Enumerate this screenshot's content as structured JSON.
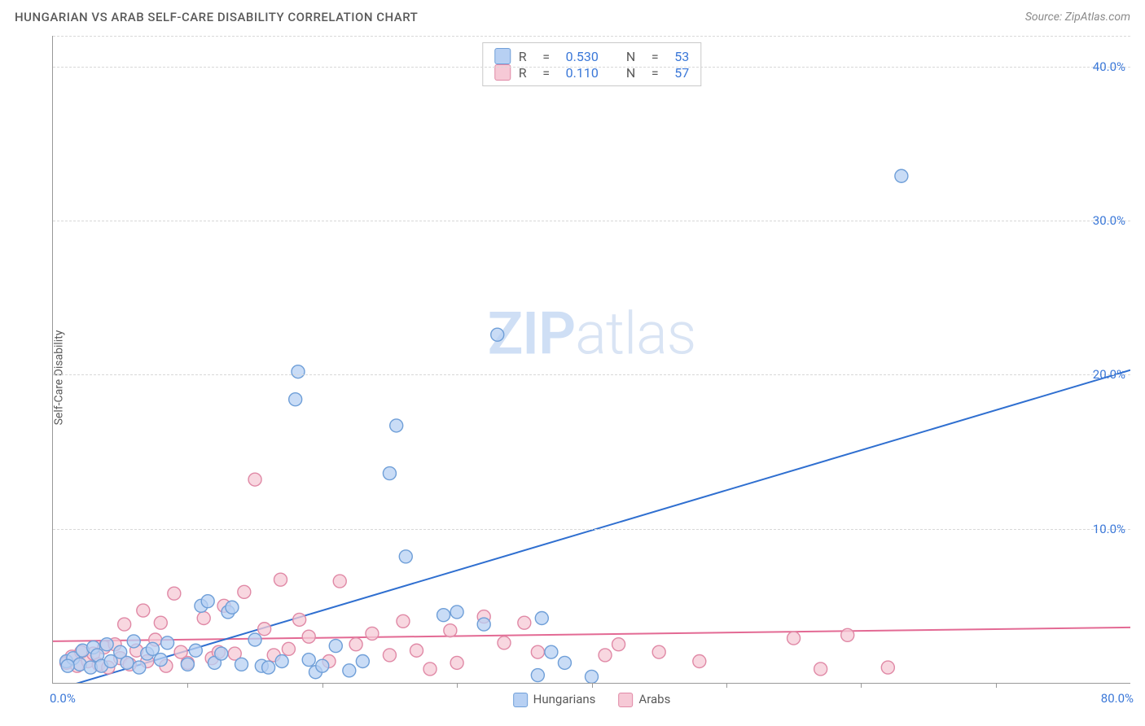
{
  "header": {
    "title": "HUNGARIAN VS ARAB SELF-CARE DISABILITY CORRELATION CHART",
    "source": "Source: ZipAtlas.com"
  },
  "chart": {
    "type": "scatter",
    "ylabel": "Self-Care Disability",
    "xlim": [
      0,
      80
    ],
    "ylim": [
      0,
      42
    ],
    "xtick_step": 10,
    "ytick_step": 10,
    "ytick_labels": [
      "10.0%",
      "20.0%",
      "30.0%",
      "40.0%"
    ],
    "xlabel_min": "0.0%",
    "xlabel_max": "80.0%",
    "grid_color": "#d8d8d8",
    "axis_color": "#999999",
    "background_color": "#ffffff",
    "marker_radius": 8,
    "marker_stroke_width": 1.4,
    "line_width": 2,
    "series": {
      "hungarians": {
        "label": "Hungarians",
        "fill": "#b7d0f3",
        "stroke": "#6f9fd8",
        "line_color": "#2f6fd0",
        "regression": {
          "x1": 0,
          "y1": -0.5,
          "x2": 80,
          "y2": 20.3
        },
        "points": [
          [
            1,
            1.4
          ],
          [
            1.5,
            1.6
          ],
          [
            2,
            1.2
          ],
          [
            2.2,
            2.1
          ],
          [
            2.8,
            1.0
          ],
          [
            3,
            2.3
          ],
          [
            3.3,
            1.8
          ],
          [
            3.6,
            1.1
          ],
          [
            4,
            2.5
          ],
          [
            4.3,
            1.4
          ],
          [
            5,
            2.0
          ],
          [
            5.5,
            1.3
          ],
          [
            6,
            2.7
          ],
          [
            6.4,
            1.0
          ],
          [
            7,
            1.9
          ],
          [
            7.4,
            2.2
          ],
          [
            8,
            1.5
          ],
          [
            8.5,
            2.6
          ],
          [
            10,
            1.2
          ],
          [
            10.6,
            2.1
          ],
          [
            11,
            5.0
          ],
          [
            11.5,
            5.3
          ],
          [
            12,
            1.3
          ],
          [
            12.5,
            1.9
          ],
          [
            13,
            4.6
          ],
          [
            13.3,
            4.9
          ],
          [
            14,
            1.2
          ],
          [
            15,
            2.8
          ],
          [
            15.5,
            1.1
          ],
          [
            16,
            1.0
          ],
          [
            17,
            1.4
          ],
          [
            18,
            18.4
          ],
          [
            18.2,
            20.2
          ],
          [
            19,
            1.5
          ],
          [
            19.5,
            0.7
          ],
          [
            20,
            1.1
          ],
          [
            21,
            2.4
          ],
          [
            22,
            0.8
          ],
          [
            23,
            1.4
          ],
          [
            25,
            13.6
          ],
          [
            25.5,
            16.7
          ],
          [
            26.2,
            8.2
          ],
          [
            29,
            4.4
          ],
          [
            30,
            4.6
          ],
          [
            32,
            3.8
          ],
          [
            33,
            22.6
          ],
          [
            36,
            0.5
          ],
          [
            36.3,
            4.2
          ],
          [
            37,
            2.0
          ],
          [
            38,
            1.3
          ],
          [
            40,
            0.4
          ],
          [
            63,
            32.9
          ],
          [
            1.1,
            1.1
          ]
        ]
      },
      "arabs": {
        "label": "Arabs",
        "fill": "#f6c9d6",
        "stroke": "#e089a6",
        "line_color": "#e36a94",
        "regression": {
          "x1": 0,
          "y1": 2.7,
          "x2": 80,
          "y2": 3.6
        },
        "points": [
          [
            1,
            1.3
          ],
          [
            1.4,
            1.7
          ],
          [
            1.8,
            1.1
          ],
          [
            2.1,
            2.0
          ],
          [
            2.6,
            1.4
          ],
          [
            3,
            1.9
          ],
          [
            3.4,
            1.2
          ],
          [
            3.8,
            2.3
          ],
          [
            4.1,
            1.0
          ],
          [
            4.6,
            2.5
          ],
          [
            5,
            1.6
          ],
          [
            5.3,
            3.8
          ],
          [
            5.7,
            1.2
          ],
          [
            6.2,
            2.1
          ],
          [
            6.7,
            4.7
          ],
          [
            7,
            1.4
          ],
          [
            7.6,
            2.8
          ],
          [
            8,
            3.9
          ],
          [
            8.4,
            1.1
          ],
          [
            9,
            5.8
          ],
          [
            9.5,
            2.0
          ],
          [
            10,
            1.3
          ],
          [
            11.2,
            4.2
          ],
          [
            11.8,
            1.6
          ],
          [
            12.3,
            2.0
          ],
          [
            12.7,
            5.0
          ],
          [
            13.5,
            1.9
          ],
          [
            14.2,
            5.9
          ],
          [
            15,
            13.2
          ],
          [
            15.7,
            3.5
          ],
          [
            16.4,
            1.8
          ],
          [
            16.9,
            6.7
          ],
          [
            17.5,
            2.2
          ],
          [
            18.3,
            4.1
          ],
          [
            19,
            3.0
          ],
          [
            20.5,
            1.4
          ],
          [
            21.3,
            6.6
          ],
          [
            22.5,
            2.5
          ],
          [
            23.7,
            3.2
          ],
          [
            25,
            1.8
          ],
          [
            26,
            4.0
          ],
          [
            27,
            2.1
          ],
          [
            28,
            0.9
          ],
          [
            29.5,
            3.4
          ],
          [
            30,
            1.3
          ],
          [
            32,
            4.3
          ],
          [
            33.5,
            2.6
          ],
          [
            35,
            3.9
          ],
          [
            36,
            2.0
          ],
          [
            41,
            1.8
          ],
          [
            42,
            2.5
          ],
          [
            45,
            2.0
          ],
          [
            48,
            1.4
          ],
          [
            55,
            2.9
          ],
          [
            57,
            0.9
          ],
          [
            59,
            3.1
          ],
          [
            62,
            1.0
          ]
        ]
      }
    },
    "stats": [
      {
        "series": "hungarians",
        "R": "0.530",
        "N": "53"
      },
      {
        "series": "arabs",
        "R": "0.110",
        "N": "57"
      }
    ],
    "watermark": {
      "bold": "ZIP",
      "rest": "atlas"
    },
    "axis_label_color": "#3b78d8",
    "axis_label_fontsize": 15,
    "title_fontsize": 15
  }
}
